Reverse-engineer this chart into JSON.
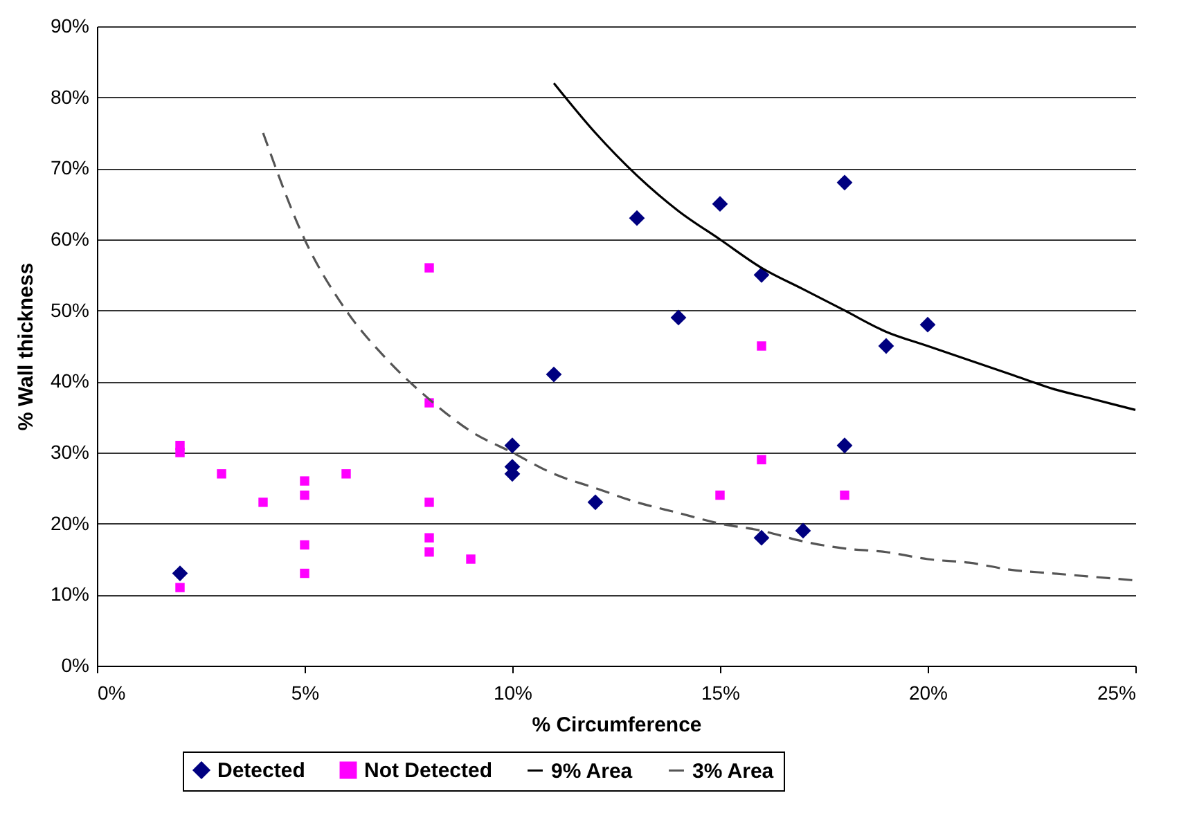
{
  "chart_data": {
    "type": "scatter",
    "xlabel": "% Circumference",
    "ylabel": "% Wall thickness",
    "xlim": [
      0,
      25
    ],
    "ylim": [
      0,
      90
    ],
    "xticks": [
      {
        "value": 0,
        "label": "0%"
      },
      {
        "value": 5,
        "label": "5%"
      },
      {
        "value": 10,
        "label": "10%"
      },
      {
        "value": 15,
        "label": "15%"
      },
      {
        "value": 20,
        "label": "20%"
      },
      {
        "value": 25,
        "label": "25%"
      }
    ],
    "yticks": [
      {
        "value": 0,
        "label": "0%"
      },
      {
        "value": 10,
        "label": "10%"
      },
      {
        "value": 20,
        "label": "20%"
      },
      {
        "value": 30,
        "label": "30%"
      },
      {
        "value": 40,
        "label": "40%"
      },
      {
        "value": 50,
        "label": "50%"
      },
      {
        "value": 60,
        "label": "60%"
      },
      {
        "value": 70,
        "label": "70%"
      },
      {
        "value": 80,
        "label": "80%"
      },
      {
        "value": 90,
        "label": "90%"
      }
    ],
    "grid": "y",
    "legend": "bottom",
    "series": [
      {
        "name": "Detected",
        "marker": "diamond",
        "color": "#000080",
        "x": [
          2,
          10,
          10,
          10,
          11,
          12,
          13,
          14,
          15,
          16,
          16,
          17,
          18,
          18,
          19,
          20
        ],
        "values": [
          13,
          31,
          28,
          27,
          41,
          23,
          63,
          49,
          65,
          55,
          18,
          19,
          68,
          31,
          45,
          48
        ]
      },
      {
        "name": "Not Detected",
        "marker": "square",
        "color": "#ff00ff",
        "x": [
          2,
          2,
          2,
          3,
          4,
          5,
          5,
          5,
          5,
          6,
          8,
          8,
          8,
          8,
          8,
          9,
          15,
          16,
          16,
          18
        ],
        "values": [
          31,
          30,
          11,
          27,
          23,
          26,
          24,
          17,
          13,
          27,
          56,
          37,
          23,
          18,
          16,
          15,
          24,
          45,
          29,
          24
        ]
      },
      {
        "name": "9% Area",
        "type": "line",
        "line_style": "solid",
        "color": "#000000",
        "x": [
          11,
          12,
          13,
          14,
          15,
          16,
          17,
          18,
          19,
          20,
          21,
          22,
          23,
          24,
          25
        ],
        "values": [
          82,
          75,
          69,
          64,
          60,
          56,
          53,
          50,
          47,
          45,
          43,
          41,
          39,
          37.5,
          36
        ]
      },
      {
        "name": "3% Area",
        "type": "line",
        "line_style": "dashed",
        "color": "#555555",
        "x": [
          4,
          5,
          6,
          7,
          8,
          9,
          10,
          11,
          12,
          13,
          14,
          15,
          16,
          17,
          18,
          19,
          20,
          21,
          22,
          23,
          24,
          25
        ],
        "values": [
          75,
          60,
          50,
          43,
          37.5,
          33,
          30,
          27,
          25,
          23,
          21.5,
          20,
          19,
          17.5,
          16.5,
          16,
          15,
          14.5,
          13.5,
          13,
          12.5,
          12
        ]
      }
    ]
  }
}
